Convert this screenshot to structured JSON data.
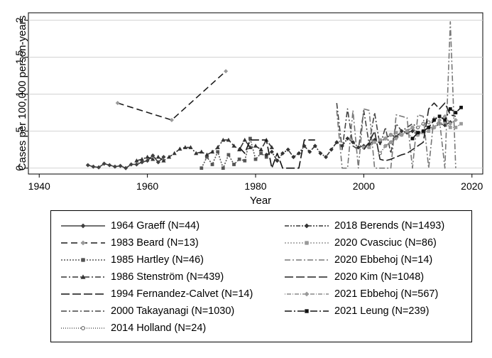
{
  "chart_data": {
    "type": "line",
    "title": "",
    "xlabel": "Year",
    "ylabel": "Cases per 100,000 person-years",
    "xlim": [
      1938,
      2022
    ],
    "ylim": [
      -0.08,
      2.1
    ],
    "x_ticks": [
      1940,
      1960,
      1980,
      2000,
      2020
    ],
    "y_ticks": [
      0,
      0.5,
      1,
      1.5,
      2
    ],
    "y_tick_labels": [
      "0",
      ".5",
      "1",
      "1.5",
      "2"
    ],
    "grid": "horizontal",
    "legend_position": "bottom",
    "series": [
      {
        "name": "1964 Graeff (N=44)",
        "color": "#404040",
        "dash": "",
        "marker": "diamond",
        "x": [
          1949,
          1950,
          1951,
          1952,
          1953,
          1954,
          1955,
          1956,
          1957,
          1958,
          1959,
          1960,
          1961,
          1962,
          1963
        ],
        "y": [
          0.04,
          0.02,
          0.01,
          0.06,
          0.04,
          0.02,
          0.03,
          0.0,
          0.05,
          0.05,
          0.08,
          0.1,
          0.17,
          0.08,
          0.15
        ]
      },
      {
        "name": "1983 Beard (N=13)",
        "color": "#1a1a1a",
        "dash": "9,5",
        "marker": "diamond-gray",
        "x": [
          1954.5,
          1964.5,
          1974.5
        ],
        "y": [
          0.88,
          0.65,
          1.31
        ]
      },
      {
        "name": "1985 Hartley (N=46)",
        "color": "#555555",
        "dash": "2,2",
        "marker": "square",
        "x": [
          1970,
          1971,
          1972,
          1973,
          1974,
          1975,
          1976,
          1977,
          1978,
          1979,
          1980,
          1981,
          1982
        ],
        "y": [
          0.0,
          0.15,
          0.05,
          0.22,
          0.0,
          0.18,
          0.05,
          0.12,
          0.1,
          0.4,
          0.12,
          0.2,
          0.15
        ]
      },
      {
        "name": "1986 Stenström (N=439)",
        "color": "#333333",
        "dash": "8,3,2,3",
        "marker": "triangle",
        "x": [
          1958,
          1959,
          1960,
          1961,
          1962,
          1963,
          1964,
          1965,
          1966,
          1967,
          1968,
          1969,
          1970,
          1971,
          1972,
          1973,
          1974,
          1975,
          1976,
          1977,
          1978,
          1979,
          1980,
          1981,
          1982,
          1983
        ],
        "y": [
          0.1,
          0.12,
          0.15,
          0.12,
          0.15,
          0.1,
          0.15,
          0.2,
          0.26,
          0.28,
          0.28,
          0.2,
          0.22,
          0.18,
          0.22,
          0.28,
          0.38,
          0.38,
          0.3,
          0.25,
          0.38,
          0.28,
          0.3,
          0.25,
          0.38,
          0.28
        ]
      },
      {
        "name": "1994 Fernandez-Calvet (N=14)",
        "color": "#111111",
        "dash": "12,4",
        "marker": "",
        "x": [
          1977,
          1978,
          1979,
          1980,
          1981,
          1982,
          1983,
          1984,
          1985,
          1986,
          1987,
          1988,
          1989,
          1990,
          1991
        ],
        "y": [
          0.28,
          0.2,
          0.38,
          0.38,
          0.38,
          0.38,
          0.0,
          0.2,
          0.0,
          0.0,
          0.0,
          0.0,
          0.38,
          0.38,
          0.38
        ]
      },
      {
        "name": "2000 Takayanagi (N=1030)",
        "color": "#444444",
        "dash": "8,3,2,3",
        "marker": "",
        "x": [
          1995,
          1996,
          1997,
          1998,
          1999,
          2000,
          2001,
          2002,
          2003,
          2004,
          2005,
          2006,
          2007,
          2008,
          2009,
          2010
        ],
        "y": [
          0.88,
          0.25,
          0.8,
          0.3,
          0.25,
          0.78,
          0.32,
          0.75,
          0.3,
          0.55,
          0.2,
          0.6,
          0.5,
          0.55,
          0.6,
          0.55
        ]
      },
      {
        "name": "2014 Holland (N=24)",
        "color": "#555555",
        "dash": "1,2",
        "marker": "circle",
        "x": [
          2003,
          2004,
          2005,
          2006,
          2007,
          2008,
          2009,
          2010,
          2011,
          2012,
          2013
        ],
        "y": [
          0.2,
          0.3,
          0.35,
          0.45,
          0.45,
          0.5,
          0.55,
          0.55,
          0.6,
          0.62,
          0.65
        ]
      },
      {
        "name": "2018 Berends (N=1493)",
        "color": "#333333",
        "dash": "6,2,2,2,2,2",
        "marker": "diamond",
        "x": [
          1982,
          1983,
          1984,
          1985,
          1986,
          1987,
          1988,
          1989,
          1990,
          1991,
          1992,
          1993,
          1994,
          1995,
          1996,
          1997,
          1998,
          1999,
          2000,
          2001,
          2002,
          2003,
          2004,
          2005,
          2006,
          2007,
          2008,
          2009,
          2010,
          2011,
          2012,
          2013,
          2014,
          2015,
          2016
        ],
        "y": [
          0.18,
          0.22,
          0.1,
          0.2,
          0.25,
          0.15,
          0.2,
          0.3,
          0.22,
          0.3,
          0.2,
          0.15,
          0.25,
          0.35,
          0.3,
          0.4,
          0.35,
          0.28,
          0.3,
          0.32,
          0.38,
          0.35,
          0.4,
          0.45,
          0.42,
          0.5,
          0.48,
          0.5,
          0.45,
          0.5,
          0.55,
          0.55,
          0.6,
          0.58,
          0.62
        ]
      },
      {
        "name": "2020 Cvasciuc (N=86)",
        "color": "#999999",
        "dash": "2,2",
        "marker": "square-gray",
        "x": [
          2000,
          2001,
          2002,
          2003,
          2004,
          2005,
          2006,
          2007,
          2008,
          2009,
          2010,
          2011,
          2012,
          2013,
          2014,
          2015,
          2016,
          2017,
          2018
        ],
        "y": [
          0.28,
          0.28,
          0.35,
          0.38,
          0.4,
          0.45,
          0.48,
          0.45,
          0.5,
          0.4,
          0.45,
          0.48,
          0.5,
          0.55,
          0.6,
          0.62,
          0.55,
          0.55,
          0.6
        ]
      },
      {
        "name": "2020 Ebbehoj (N=14)",
        "color": "#777777",
        "dash": "8,3,2,3",
        "marker": "",
        "x": [
          1995,
          1996,
          1997,
          1998,
          1999,
          2000,
          2001,
          2002,
          2003,
          2004,
          2005,
          2006,
          2007,
          2008,
          2009,
          2010,
          2011,
          2012,
          2013,
          2014,
          2015,
          2016,
          2017
        ],
        "y": [
          0.78,
          0.0,
          0.0,
          0.78,
          0.0,
          0.8,
          0.78,
          0.0,
          0.0,
          0.0,
          0.0,
          0.72,
          0.7,
          0.68,
          0.0,
          0.72,
          0.7,
          0.0,
          0.7,
          0.65,
          0.0,
          1.98,
          0.0
        ]
      },
      {
        "name": "2020 Kim (N=1048)",
        "color": "#222222",
        "dash": "12,4",
        "marker": "",
        "x": [
          2000,
          2001,
          2002,
          2003,
          2004,
          2005,
          2006,
          2007,
          2008,
          2009,
          2010,
          2011,
          2012,
          2013,
          2014,
          2015,
          2016,
          2017
        ],
        "y": [
          0.25,
          0.35,
          0.5,
          0.12,
          0.1,
          0.12,
          0.15,
          0.18,
          0.2,
          0.25,
          0.3,
          0.35,
          0.8,
          0.88,
          0.8,
          0.88,
          0.72,
          0.7
        ]
      },
      {
        "name": "2021 Ebbehoj (N=567)",
        "color": "#888888",
        "dash": "1,2,6,2",
        "marker": "diamond-gray",
        "x": [
          2004,
          2005,
          2006,
          2007,
          2008,
          2009,
          2010,
          2011,
          2012,
          2013,
          2014,
          2015,
          2016,
          2017
        ],
        "y": [
          0.3,
          0.35,
          0.4,
          0.45,
          0.5,
          0.55,
          0.45,
          0.5,
          0.55,
          0.55,
          0.65,
          0.7,
          0.6,
          0.65
        ]
      },
      {
        "name": "2021 Leung (N=239)",
        "color": "#111111",
        "dash": "10,3,2,3",
        "marker": "square",
        "x": [
          2009,
          2010,
          2011,
          2012,
          2013,
          2014,
          2015,
          2016,
          2017,
          2018
        ],
        "y": [
          0.4,
          0.48,
          0.5,
          0.55,
          0.65,
          0.7,
          0.65,
          0.8,
          0.75,
          0.82
        ]
      }
    ]
  }
}
